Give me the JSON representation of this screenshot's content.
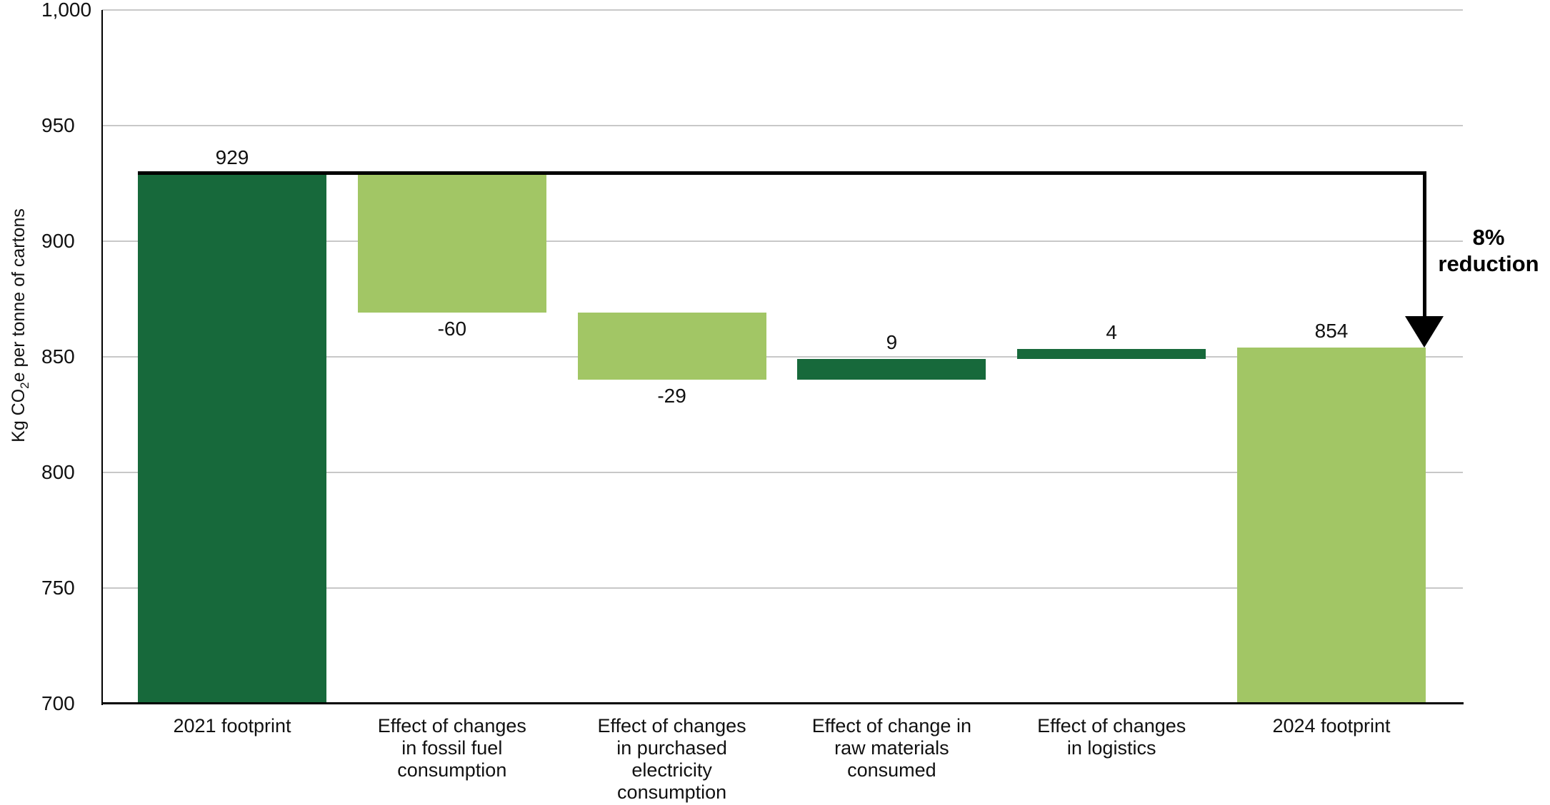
{
  "chart_data": {
    "type": "bar",
    "subtype": "waterfall",
    "title": "",
    "y_axis": {
      "label_prefix": "Kg CO",
      "label_subscript": "2",
      "label_suffix": "e per tonne of cartons",
      "min": 700,
      "max": 1000,
      "ticks": [
        {
          "value": 1000,
          "label": "1,000"
        },
        {
          "value": 950,
          "label": "950"
        },
        {
          "value": 900,
          "label": "900"
        },
        {
          "value": 850,
          "label": "850"
        },
        {
          "value": 800,
          "label": "800"
        },
        {
          "value": 750,
          "label": "750"
        },
        {
          "value": 700,
          "label": "700"
        }
      ],
      "gridlines": true
    },
    "categories": [
      "2021 footprint",
      "Effect of changes\nin fossil fuel\nconsumption",
      "Effect of changes\nin purchased\nelectricity\nconsumption",
      "Effect of change in\nraw materials\nconsumed",
      "Effect of changes\nin logistics",
      "2024 footprint"
    ],
    "bars": [
      {
        "category": "2021 footprint",
        "value_label": "929",
        "from": 700,
        "to": 929,
        "color": "dark",
        "label_side": "above"
      },
      {
        "category": "Effect of changes\nin fossil fuel\nconsumption",
        "value_label": "-60",
        "from": 929,
        "to": 869,
        "color": "light",
        "label_side": "below"
      },
      {
        "category": "Effect of changes\nin purchased\nelectricity\nconsumption",
        "value_label": "-29",
        "from": 869,
        "to": 840,
        "color": "light",
        "label_side": "below"
      },
      {
        "category": "Effect of change in\nraw materials\nconsumed",
        "value_label": "9",
        "from": 840,
        "to": 849,
        "color": "dark",
        "label_side": "above"
      },
      {
        "category": "Effect of changes\nin logistics",
        "value_label": "4",
        "from": 849,
        "to": 853.5,
        "color": "dark",
        "label_side": "above"
      },
      {
        "category": "2024 footprint",
        "value_label": "854",
        "from": 700,
        "to": 854,
        "color": "light",
        "label_side": "above"
      }
    ],
    "annotation": {
      "text": "8%\nreduction",
      "from_level": 929,
      "to_level": 854
    },
    "colors": {
      "dark_green": "#17693B",
      "light_green": "#A2C665",
      "gridline": "#C8C8C8",
      "axis": "#000000",
      "text": "#111111"
    }
  }
}
